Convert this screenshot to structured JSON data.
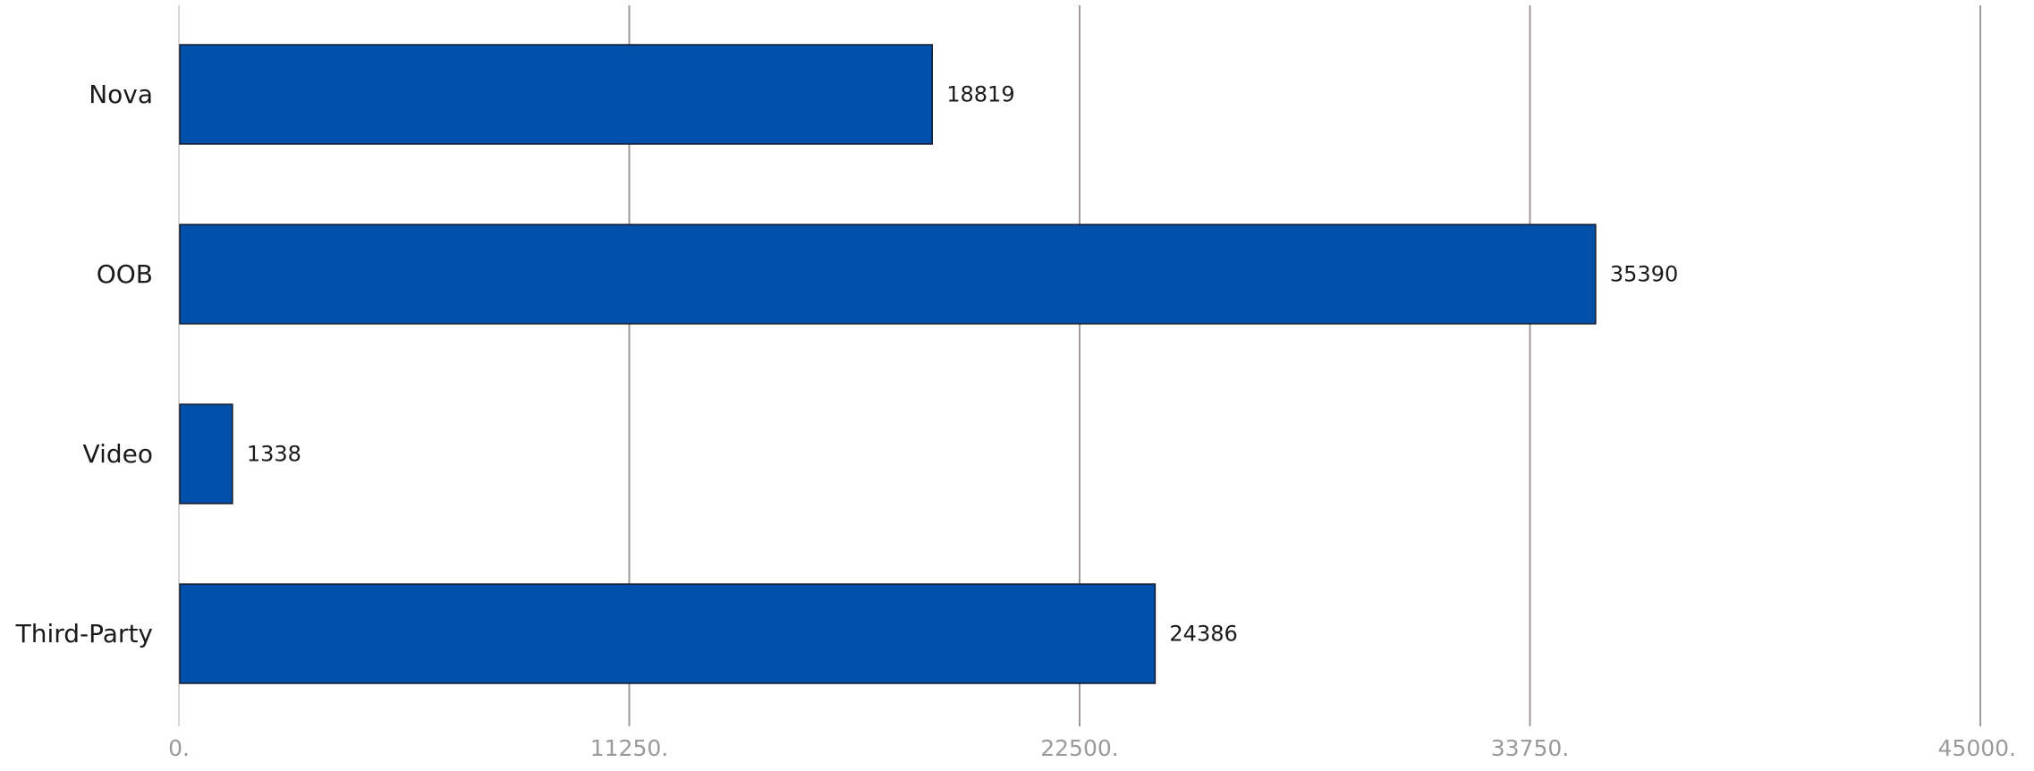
{
  "chart_data": {
    "type": "bar",
    "orientation": "horizontal",
    "title": "",
    "xlabel": "",
    "ylabel": "",
    "categories": [
      "Nova",
      "OOB",
      "Video",
      "Third-Party"
    ],
    "values": [
      18819,
      35390,
      1338,
      24386
    ],
    "value_labels": [
      "18819",
      "35390",
      "1338",
      "24386"
    ],
    "xlim": [
      0,
      45000
    ],
    "ticks": [
      0,
      11250,
      22500,
      33750,
      45000
    ],
    "tick_labels": [
      "0.",
      "11250.",
      "22500.",
      "33750.",
      "45000."
    ],
    "grid": true,
    "legend": "none",
    "colors": {
      "bar": "#0050aa",
      "bar_stroke": "#1a1a2a",
      "grid": "#a09a9a",
      "baseline": "#d8d8d8",
      "tick_text": "#9a9a9a"
    }
  }
}
